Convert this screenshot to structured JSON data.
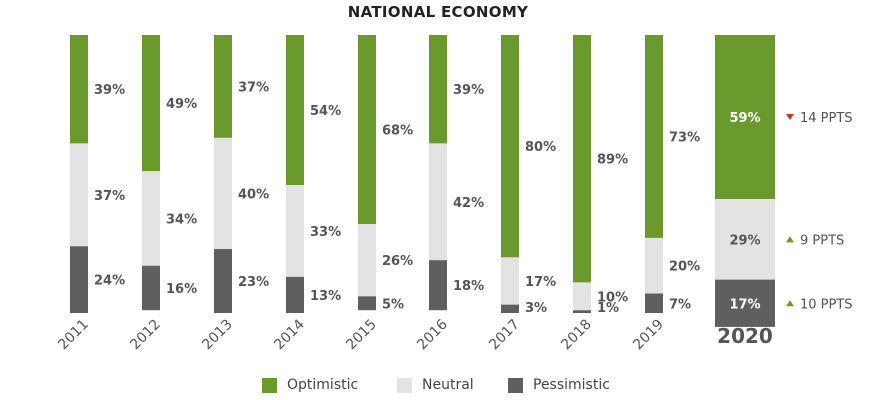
{
  "chart_data": {
    "type": "bar",
    "stacked": true,
    "title": "NATIONAL ECONOMY",
    "categories": [
      "2011",
      "2012",
      "2013",
      "2014",
      "2015",
      "2016",
      "2017",
      "2018",
      "2019",
      "2020"
    ],
    "series": [
      {
        "name": "Optimistic",
        "color": "#6a9a2c",
        "values": [
          39,
          49,
          37,
          54,
          68,
          39,
          80,
          89,
          73,
          59
        ]
      },
      {
        "name": "Neutral",
        "color": "#e3e3e3",
        "values": [
          37,
          34,
          40,
          33,
          26,
          42,
          17,
          10,
          20,
          29
        ]
      },
      {
        "name": "Pessimistic",
        "color": "#5f5f5f",
        "values": [
          24,
          16,
          23,
          13,
          5,
          18,
          3,
          1,
          7,
          17
        ]
      }
    ],
    "ylim": [
      0,
      100
    ],
    "highlight_category": "2020",
    "changes": [
      {
        "series": "Optimistic",
        "direction": "down",
        "label": "14 PPTS",
        "color": "#c0392b"
      },
      {
        "series": "Neutral",
        "direction": "up",
        "label": "9 PPTS",
        "color": "#6a9a2c"
      },
      {
        "series": "Pessimistic",
        "direction": "up",
        "label": "10 PPTS",
        "color": "#6a9a2c"
      }
    ]
  }
}
